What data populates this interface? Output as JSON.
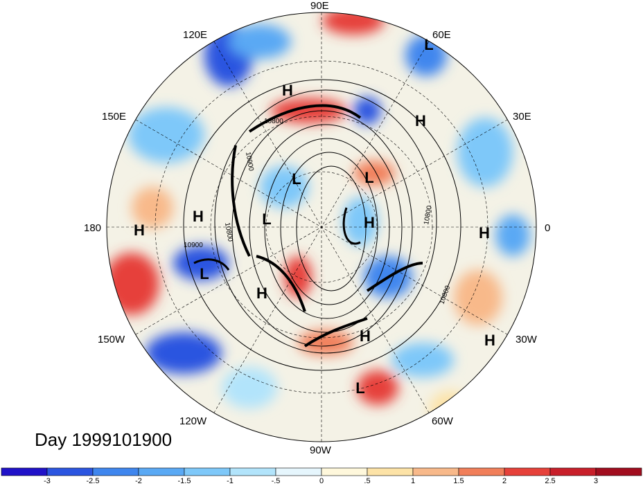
{
  "map": {
    "projection": "north-polar-stereographic",
    "date_label": "Day 1999101900",
    "longitude_labels": {
      "lon_90e": "90E",
      "lon_60e": "60E",
      "lon_120e": "120E",
      "lon_30e": "30E",
      "lon_150e": "150E",
      "lon_0": "0",
      "lon_180": "180",
      "lon_30w": "30W",
      "lon_150w": "150W",
      "lon_60w": "60W",
      "lon_120w": "120W",
      "lon_90w": "90W"
    },
    "pressure_centers": [
      {
        "label": "L",
        "lon_desc": "60E"
      },
      {
        "label": "H",
        "lon_desc": "100E"
      },
      {
        "label": "H",
        "lon_desc": "45E"
      },
      {
        "label": "L",
        "lon_desc": "110E"
      },
      {
        "label": "L",
        "lon_desc": "60E"
      },
      {
        "label": "H",
        "lon_desc": "165E"
      },
      {
        "label": "L",
        "lon_desc": "150E"
      },
      {
        "label": "H",
        "lon_desc": "30E"
      },
      {
        "label": "H",
        "lon_desc": "180"
      },
      {
        "label": "H",
        "lon_desc": "0"
      },
      {
        "label": "L",
        "lon_desc": "170W"
      },
      {
        "label": "H",
        "lon_desc": "130W"
      },
      {
        "label": "H",
        "lon_desc": "60W"
      },
      {
        "label": "H",
        "lon_desc": "30W"
      },
      {
        "label": "L",
        "lon_desc": "80W"
      }
    ],
    "contour_labels": [
      "10800",
      "10900",
      "10900",
      "10800",
      "10800",
      "10800"
    ]
  },
  "colorbar": {
    "levels": [
      "-3",
      "-2.5",
      "-2",
      "-1.5",
      "-1",
      "-.5",
      "0",
      ".5",
      "1",
      "1.5",
      "2",
      "2.5",
      "3"
    ],
    "colors": [
      "#2012c8",
      "#2b55e0",
      "#3f86ee",
      "#5aa9f4",
      "#7ec8f9",
      "#b2e4fb",
      "#e6f6fd",
      "#fff8dc",
      "#fde3a7",
      "#f8b98a",
      "#f17f5a",
      "#e6413a",
      "#c81f2a",
      "#a10d1e"
    ]
  }
}
